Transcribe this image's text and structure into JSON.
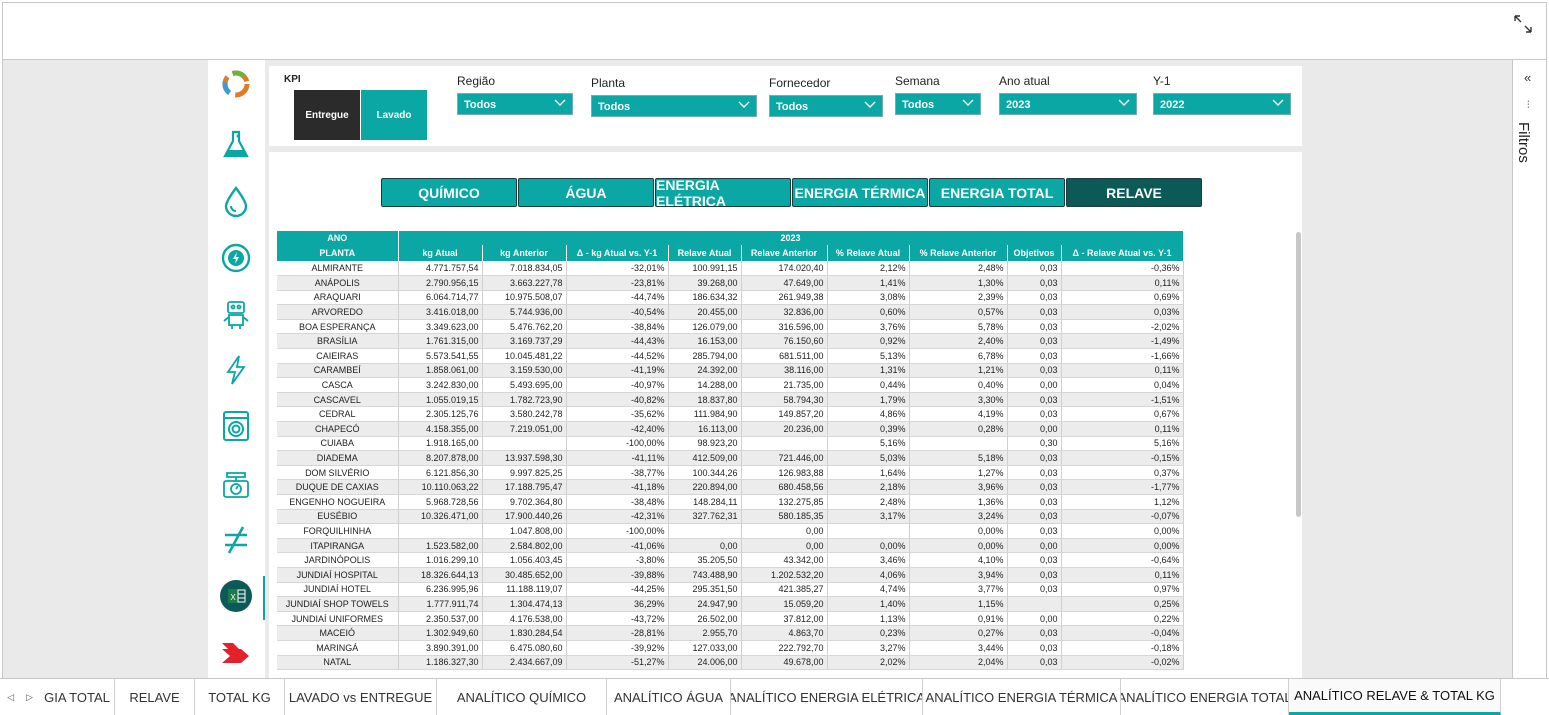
{
  "kpi": {
    "label": "KPI",
    "entregue": "Entregue",
    "lavado": "Lavado"
  },
  "filters": [
    {
      "label": "Região",
      "value": "Todos"
    },
    {
      "label": "Planta",
      "value": "Todos"
    },
    {
      "label": "Fornecedor",
      "value": "Todos"
    },
    {
      "label": "Semana",
      "value": "Todos"
    },
    {
      "label": "Ano atual",
      "value": "2023"
    },
    {
      "label": "Y-1",
      "value": "2022"
    }
  ],
  "category_tabs": [
    "QUÍMICO",
    "ÁGUA",
    "ENERGIA ELÉTRICA",
    "ENERGIA TÉRMICA",
    "ENERGIA TOTAL",
    "RELAVE"
  ],
  "active_category": "RELAVE",
  "right_panel": {
    "label": "Filtros",
    "collapse": "«"
  },
  "nav_icons": [
    "recycle-logo-icon",
    "flask-icon",
    "water-drop-icon",
    "energy-cycle-icon",
    "robot-icon",
    "lightning-icon",
    "washing-machine-icon",
    "scale-icon",
    "not-equal-icon",
    "excel-icon",
    "arrow-logo-icon"
  ],
  "table": {
    "header_row1": {
      "ano": "ANO",
      "year": "2023"
    },
    "columns": [
      "PLANTA",
      "kg Atual",
      "kg Anterior",
      "Δ - kg Atual vs. Y-1",
      "Relave Atual",
      "Relave Anterior",
      "% Relave Atual",
      "% Relave Anterior",
      "Objetivos",
      "Δ - Relave Atual vs. Y-1"
    ],
    "rows": [
      [
        "ALMIRANTE",
        "4.771.757,54",
        "7.018.834,05",
        "-32,01%",
        "100.991,15",
        "174.020,40",
        "2,12%",
        "2,48%",
        "0,03",
        "-0,36%"
      ],
      [
        "ANÁPOLIS",
        "2.790.956,15",
        "3.663.227,78",
        "-23,81%",
        "39.268,00",
        "47.649,00",
        "1,41%",
        "1,30%",
        "0,03",
        "0,11%"
      ],
      [
        "ARAQUARI",
        "6.064.714,77",
        "10.975.508,07",
        "-44,74%",
        "186.634,32",
        "261.949,38",
        "3,08%",
        "2,39%",
        "0,03",
        "0,69%"
      ],
      [
        "ARVOREDO",
        "3.416.018,00",
        "5.744.936,00",
        "-40,54%",
        "20.455,00",
        "32.836,00",
        "0,60%",
        "0,57%",
        "0,03",
        "0,03%"
      ],
      [
        "BOA ESPERANÇA",
        "3.349.623,00",
        "5.476.762,20",
        "-38,84%",
        "126.079,00",
        "316.596,00",
        "3,76%",
        "5,78%",
        "0,03",
        "-2,02%"
      ],
      [
        "BRASÍLIA",
        "1.761.315,00",
        "3.169.737,29",
        "-44,43%",
        "16.153,00",
        "76.150,60",
        "0,92%",
        "2,40%",
        "0,03",
        "-1,49%"
      ],
      [
        "CAIEIRAS",
        "5.573.541,55",
        "10.045.481,22",
        "-44,52%",
        "285.794,00",
        "681.511,00",
        "5,13%",
        "6,78%",
        "0,03",
        "-1,66%"
      ],
      [
        "CARAMBEÍ",
        "1.858.061,00",
        "3.159.530,00",
        "-41,19%",
        "24.392,00",
        "38.116,00",
        "1,31%",
        "1,21%",
        "0,03",
        "0,11%"
      ],
      [
        "CASCA",
        "3.242.830,00",
        "5.493.695,00",
        "-40,97%",
        "14.288,00",
        "21.735,00",
        "0,44%",
        "0,40%",
        "0,00",
        "0,04%"
      ],
      [
        "CASCAVEL",
        "1.055.019,15",
        "1.782.723,90",
        "-40,82%",
        "18.837,80",
        "58.794,30",
        "1,79%",
        "3,30%",
        "0,03",
        "-1,51%"
      ],
      [
        "CEDRAL",
        "2.305.125,76",
        "3.580.242,78",
        "-35,62%",
        "111.984,90",
        "149.857,20",
        "4,86%",
        "4,19%",
        "0,03",
        "0,67%"
      ],
      [
        "CHAPECÓ",
        "4.158.355,00",
        "7.219.051,00",
        "-42,40%",
        "16.113,00",
        "20.236,00",
        "0,39%",
        "0,28%",
        "0,00",
        "0,11%"
      ],
      [
        "CUIABA",
        "1.918.165,00",
        "",
        "-100,00%",
        "98.923,20",
        "",
        "5,16%",
        "",
        "0,30",
        "5,16%"
      ],
      [
        "DIADEMA",
        "8.207.878,00",
        "13.937.598,30",
        "-41,11%",
        "412.509,00",
        "721.446,00",
        "5,03%",
        "5,18%",
        "0,03",
        "-0,15%"
      ],
      [
        "DOM SILVÉRIO",
        "6.121.856,30",
        "9.997.825,25",
        "-38,77%",
        "100.344,26",
        "126.983,88",
        "1,64%",
        "1,27%",
        "0,03",
        "0,37%"
      ],
      [
        "DUQUE DE CAXIAS",
        "10.110.063,22",
        "17.188.795,47",
        "-41,18%",
        "220.894,00",
        "680.458,56",
        "2,18%",
        "3,96%",
        "0,03",
        "-1,77%"
      ],
      [
        "ENGENHO NOGUEIRA",
        "5.968.728,56",
        "9.702.364,80",
        "-38,48%",
        "148.284,11",
        "132.275,85",
        "2,48%",
        "1,36%",
        "0,03",
        "1,12%"
      ],
      [
        "EUSÉBIO",
        "10.326.471,00",
        "17.900.440,26",
        "-42,31%",
        "327.762,31",
        "580.185,35",
        "3,17%",
        "3,24%",
        "0,03",
        "-0,07%"
      ],
      [
        "FORQUILHINHA",
        "",
        "1.047.808,00",
        "-100,00%",
        "",
        "0,00",
        "",
        "0,00%",
        "0,03",
        "0,00%"
      ],
      [
        "ITAPIRANGA",
        "1.523.582,00",
        "2.584.802,00",
        "-41,06%",
        "0,00",
        "0,00",
        "0,00%",
        "0,00%",
        "0,00",
        "0,00%"
      ],
      [
        "JARDINÓPOLIS",
        "1.016.299,10",
        "1.056.403,45",
        "-3,80%",
        "35.205,50",
        "43.342,00",
        "3,46%",
        "4,10%",
        "0,03",
        "-0,64%"
      ],
      [
        "JUNDIAÍ HOSPITAL",
        "18.326.644,13",
        "30.485.652,00",
        "-39,88%",
        "743.488,90",
        "1.202.532,20",
        "4,06%",
        "3,94%",
        "0,03",
        "0,11%"
      ],
      [
        "JUNDIAÍ HOTEL",
        "6.236.995,96",
        "11.188.119,07",
        "-44,25%",
        "295.351,50",
        "421.385,27",
        "4,74%",
        "3,77%",
        "0,03",
        "0,97%"
      ],
      [
        "JUNDIAÍ SHOP TOWELS",
        "1.777.911,74",
        "1.304.474,13",
        "36,29%",
        "24.947,90",
        "15.059,20",
        "1,40%",
        "1,15%",
        "",
        "0,25%"
      ],
      [
        "JUNDIAÍ UNIFORMES",
        "2.350.537,00",
        "4.176.538,00",
        "-43,72%",
        "26.502,00",
        "37.812,00",
        "1,13%",
        "0,91%",
        "0,00",
        "0,22%"
      ],
      [
        "MACEIÓ",
        "1.302.949,60",
        "1.830.284,54",
        "-28,81%",
        "2.955,70",
        "4.863,70",
        "0,23%",
        "0,27%",
        "0,03",
        "-0,04%"
      ],
      [
        "MARINGÁ",
        "3.890.391,00",
        "6.475.080,60",
        "-39,92%",
        "127.033,00",
        "222.792,70",
        "3,27%",
        "3,44%",
        "0,03",
        "-0,18%"
      ],
      [
        "NATAL",
        "1.186.327,30",
        "2.434.667,09",
        "-51,27%",
        "24.006,00",
        "49.678,00",
        "2,02%",
        "2,04%",
        "0,03",
        "-0,02%"
      ]
    ]
  },
  "bottom_tabs": [
    "GIA TOTAL",
    "RELAVE",
    "TOTAL KG",
    "LAVADO vs ENTREGUE",
    "ANALÍTICO QUÍMICO",
    "ANALÍTICO ÁGUA",
    "ANALÍTICO ENERGIA ELÉTRICA",
    "ANALÍTICO ENERGIA TÉRMICA",
    "ANALÍTICO ENERGIA TOTAL",
    "ANALÍTICO RELAVE & TOTAL KG"
  ],
  "active_bottom_tab": "ANALÍTICO RELAVE & TOTAL KG",
  "colors": {
    "accent": "#0aa7a4",
    "dark_accent": "#0c5a57",
    "dark": "#2b2b2b"
  }
}
